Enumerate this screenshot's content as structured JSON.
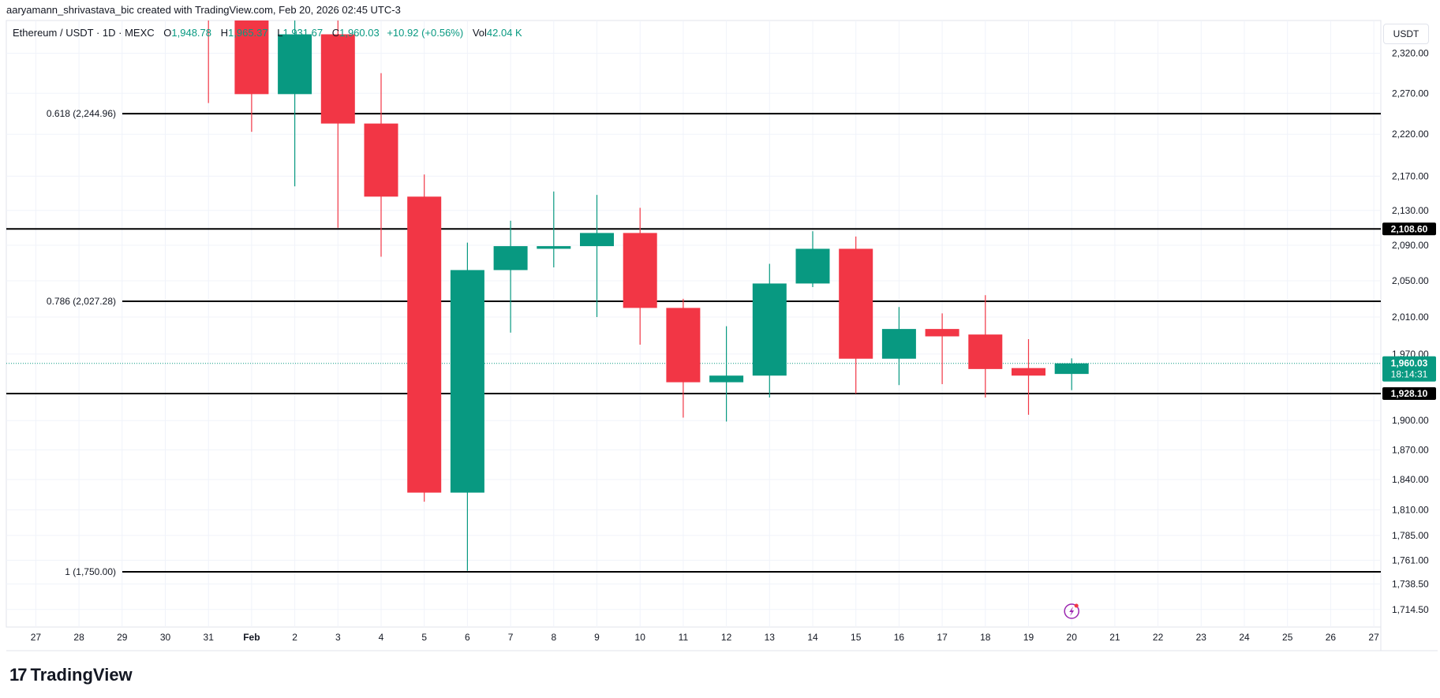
{
  "header": {
    "credit": "aaryamann_shrivastava_bic created with TradingView.com, Feb 20, 2026 02:45 UTC-3",
    "symbol": "Ethereum / USDT · 1D · MEXC",
    "o_label": "O",
    "o": "1,948.78",
    "h_label": "H",
    "h": "1,965.37",
    "l_label": "L",
    "l": "1,931.67",
    "c_label": "C",
    "c": "1,960.03",
    "change": "+10.92 (+0.56%)",
    "vol_label": "Vol",
    "vol": "42.04 K"
  },
  "price_axis": {
    "unit": "USDT"
  },
  "footer": {
    "logo_text": "TradingView",
    "logo_mark": "17"
  },
  "colors": {
    "up": "#089981",
    "down": "#f23645",
    "line": "#000000",
    "grid": "#f0f3fa",
    "alert_icon": "#9c27b0"
  },
  "chart_data": {
    "type": "candlestick",
    "scale": "log",
    "ylim": [
      1700,
      2380
    ],
    "grid": true,
    "y_ticks": [
      "2,320.00",
      "2,270.00",
      "2,220.00",
      "2,170.00",
      "2,130.00",
      "2,090.00",
      "2,050.00",
      "2,010.00",
      "1,970.00",
      "1,900.00",
      "1,870.00",
      "1,840.00",
      "1,810.00",
      "1,785.00",
      "1,761.00",
      "1,738.50",
      "1,714.50"
    ],
    "x_ticks": [
      "27",
      "28",
      "29",
      "30",
      "31",
      "Feb",
      "2",
      "3",
      "4",
      "5",
      "6",
      "7",
      "8",
      "9",
      "10",
      "11",
      "12",
      "13",
      "14",
      "15",
      "16",
      "17",
      "18",
      "19",
      "20",
      "21",
      "22",
      "23",
      "24",
      "25",
      "26",
      "27"
    ],
    "candles": [
      {
        "date": "Jan 31",
        "o": 2400,
        "h": 2420,
        "l": 2258,
        "c": 2370
      },
      {
        "date": "Feb 1",
        "o": 2390,
        "h": 2400,
        "l": 2223,
        "c": 2269
      },
      {
        "date": "Feb 2",
        "o": 2269,
        "h": 2370,
        "l": 2158,
        "c": 2344
      },
      {
        "date": "Feb 3",
        "o": 2344,
        "h": 2370,
        "l": 2110,
        "c": 2233
      },
      {
        "date": "Feb 4",
        "o": 2233,
        "h": 2295,
        "l": 2077,
        "c": 2146
      },
      {
        "date": "Feb 5",
        "o": 2146,
        "h": 2172,
        "l": 1818,
        "c": 1827
      },
      {
        "date": "Feb 6",
        "o": 1827,
        "h": 2093,
        "l": 1751,
        "c": 2062
      },
      {
        "date": "Feb 7",
        "o": 2062,
        "h": 2118,
        "l": 1993,
        "c": 2089
      },
      {
        "date": "Feb 8",
        "o": 2086,
        "h": 2152,
        "l": 2065,
        "c": 2089
      },
      {
        "date": "Feb 9",
        "o": 2089,
        "h": 2148,
        "l": 2010,
        "c": 2104
      },
      {
        "date": "Feb 10",
        "o": 2104,
        "h": 2133,
        "l": 1980,
        "c": 2020
      },
      {
        "date": "Feb 11",
        "o": 2020,
        "h": 2030,
        "l": 1903,
        "c": 1940
      },
      {
        "date": "Feb 12",
        "o": 1940,
        "h": 2000,
        "l": 1899,
        "c": 1947
      },
      {
        "date": "Feb 13",
        "o": 1947,
        "h": 2069,
        "l": 1924,
        "c": 2047
      },
      {
        "date": "Feb 14",
        "o": 2047,
        "h": 2106,
        "l": 2043,
        "c": 2086
      },
      {
        "date": "Feb 15",
        "o": 2086,
        "h": 2100,
        "l": 1928,
        "c": 1965
      },
      {
        "date": "Feb 16",
        "o": 1965,
        "h": 2021,
        "l": 1937,
        "c": 1997
      },
      {
        "date": "Feb 17",
        "o": 1997,
        "h": 2014,
        "l": 1938,
        "c": 1989
      },
      {
        "date": "Feb 18",
        "o": 1991,
        "h": 2034,
        "l": 1924,
        "c": 1954
      },
      {
        "date": "Feb 19",
        "o": 1955,
        "h": 1986,
        "l": 1906,
        "c": 1947
      },
      {
        "date": "Feb 20",
        "o": 1948.78,
        "h": 1965.37,
        "l": 1931.67,
        "c": 1960.03
      }
    ],
    "fib_levels": [
      {
        "label": "0.618 (2,244.96)",
        "price": 2244.96
      },
      {
        "label": "0.786 (2,027.28)",
        "price": 2027.28
      },
      {
        "label": "1 (1,750.00)",
        "price": 1750.0
      }
    ],
    "horizontal_lines": [
      {
        "price": 2108.6,
        "label": "2,108.60"
      },
      {
        "price": 1928.1,
        "label": "1,928.10"
      }
    ],
    "last_price": {
      "price": 1960.03,
      "label": "1,960.03",
      "countdown": "18:14:31"
    }
  }
}
